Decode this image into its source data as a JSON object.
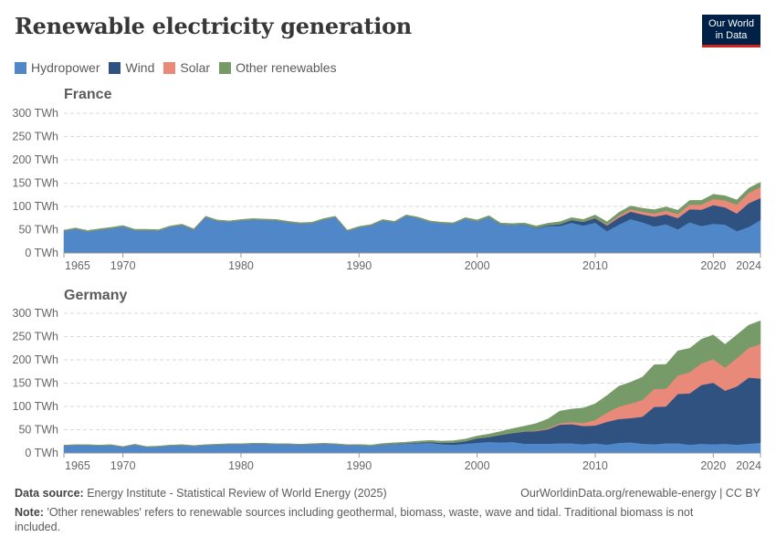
{
  "header": {
    "title": "Renewable electricity generation",
    "logo_line1": "Our World",
    "logo_line2": "in Data"
  },
  "colors": {
    "Hydropower": "#5087c9",
    "Wind": "#2f5280",
    "Solar": "#e9897a",
    "Other renewables": "#769b68"
  },
  "legend": [
    "Hydropower",
    "Wind",
    "Solar",
    "Other renewables"
  ],
  "footer": {
    "source_label": "Data source:",
    "source": "Energy Institute - Statistical Review of World Energy (2025)",
    "url": "OurWorldinData.org/renewable-energy | CC BY",
    "note_label": "Note:",
    "note": "'Other renewables' refers to renewable sources including geothermal, biomass, waste, wave and tidal. Traditional biomass is not included."
  },
  "chart_data": [
    {
      "type": "area",
      "stacked": true,
      "title": "France",
      "x_start": 1965,
      "x_end": 2024,
      "x_ticks": [
        "1965",
        "1970",
        "1980",
        "1990",
        "2000",
        "2010",
        "2020",
        "2024"
      ],
      "y_ticks": [
        "0 TWh",
        "50 TWh",
        "100 TWh",
        "150 TWh",
        "200 TWh",
        "250 TWh",
        "300 TWh"
      ],
      "ylim": [
        0,
        300
      ],
      "grid": true,
      "legend": "top-left",
      "series": [
        {
          "name": "Hydropower",
          "values": [
            47,
            52,
            46,
            50,
            53,
            57,
            49,
            49,
            48,
            56,
            60,
            50,
            77,
            69,
            67,
            70,
            72,
            71,
            70,
            66,
            63,
            64,
            72,
            77,
            47,
            55,
            59,
            70,
            66,
            80,
            75,
            67,
            64,
            63,
            74,
            68,
            77,
            61,
            60,
            61,
            53,
            58,
            58,
            65,
            59,
            65,
            47,
            61,
            73,
            66,
            57,
            62,
            51,
            66,
            58,
            63,
            61,
            47,
            56,
            71
          ]
        },
        {
          "name": "Wind",
          "values": [
            0,
            0,
            0,
            0,
            0,
            0,
            0,
            0,
            0,
            0,
            0,
            0,
            0,
            0,
            0,
            0,
            0,
            0,
            0,
            0,
            0,
            0,
            0,
            0,
            0,
            0,
            0,
            0,
            0,
            0,
            0,
            0,
            0,
            0,
            0,
            0.1,
            0.1,
            0.3,
            0.4,
            0.6,
            1,
            2,
            4,
            6,
            8,
            10,
            12,
            15,
            16,
            17,
            21,
            21,
            24,
            28,
            35,
            40,
            37,
            38,
            51,
            47
          ]
        },
        {
          "name": "Solar",
          "values": [
            0,
            0,
            0,
            0,
            0,
            0,
            0,
            0,
            0,
            0,
            0,
            0,
            0,
            0,
            0,
            0,
            0,
            0,
            0,
            0,
            0,
            0,
            0,
            0,
            0,
            0,
            0,
            0,
            0,
            0,
            0,
            0,
            0,
            0,
            0,
            0,
            0,
            0,
            0,
            0,
            0,
            0,
            0,
            0,
            0,
            0.6,
            2,
            4,
            5,
            6,
            7,
            8,
            9,
            10,
            11,
            13,
            15,
            19,
            22,
            24
          ]
        },
        {
          "name": "Other renewables",
          "values": [
            2,
            2,
            2,
            2,
            2,
            2,
            2,
            2,
            2,
            2,
            2,
            2,
            2,
            2,
            2,
            2,
            2,
            2,
            2,
            2,
            2,
            2,
            2,
            2,
            2,
            2,
            2,
            2,
            2,
            2,
            2,
            2,
            2,
            2,
            2,
            3,
            3,
            3,
            3,
            3,
            4,
            4,
            5,
            5,
            5,
            6,
            6,
            7,
            7,
            7,
            8,
            8,
            8,
            9,
            9,
            10,
            10,
            10,
            10,
            10
          ]
        }
      ]
    },
    {
      "type": "area",
      "stacked": true,
      "title": "Germany",
      "x_start": 1965,
      "x_end": 2024,
      "x_ticks": [
        "1965",
        "1970",
        "1980",
        "1990",
        "2000",
        "2010",
        "2020",
        "2024"
      ],
      "y_ticks": [
        "0 TWh",
        "50 TWh",
        "100 TWh",
        "150 TWh",
        "200 TWh",
        "250 TWh",
        "300 TWh"
      ],
      "ylim": [
        0,
        300
      ],
      "grid": true,
      "series": [
        {
          "name": "Hydropower",
          "values": [
            16,
            17,
            17,
            16,
            17,
            13,
            18,
            13,
            14,
            16,
            17,
            15,
            17,
            18,
            19,
            19,
            20,
            20,
            19,
            19,
            18,
            19,
            20,
            19,
            17,
            17,
            15,
            18,
            19,
            20,
            21,
            22,
            19,
            18,
            20,
            22,
            24,
            23,
            24,
            20,
            20,
            20,
            21,
            21,
            19,
            21,
            18,
            22,
            23,
            20,
            19,
            21,
            21,
            18,
            20,
            19,
            20,
            18,
            20,
            22
          ]
        },
        {
          "name": "Wind",
          "values": [
            0,
            0,
            0,
            0,
            0,
            0,
            0,
            0,
            0,
            0,
            0,
            0,
            0,
            0,
            0,
            0,
            0,
            0,
            0,
            0,
            0,
            0,
            0,
            0,
            0,
            0,
            0.2,
            0.3,
            0.7,
            0.9,
            1.5,
            2,
            3,
            4.5,
            5.5,
            9.5,
            10.5,
            16,
            19,
            26,
            27,
            31,
            40,
            41,
            39,
            38,
            49,
            51,
            52,
            58,
            80,
            79,
            106,
            110,
            126,
            132,
            114,
            125,
            142,
            138
          ]
        },
        {
          "name": "Solar",
          "values": [
            0,
            0,
            0,
            0,
            0,
            0,
            0,
            0,
            0,
            0,
            0,
            0,
            0,
            0,
            0,
            0,
            0,
            0,
            0,
            0,
            0,
            0,
            0,
            0,
            0,
            0,
            0,
            0,
            0,
            0,
            0,
            0,
            0,
            0,
            0,
            0,
            0.1,
            0.2,
            0.3,
            0.6,
            1.3,
            2.2,
            3,
            4.4,
            6.6,
            11.7,
            19.6,
            26.4,
            31,
            36,
            38.7,
            38.1,
            39.4,
            45.8,
            46.4,
            50.6,
            49.3,
            60.8,
            63.6,
            74
          ]
        },
        {
          "name": "Other renewables",
          "values": [
            1,
            1,
            1,
            1,
            1,
            1,
            1,
            1,
            1,
            1,
            1,
            1,
            1,
            1,
            1,
            1,
            1,
            1,
            1,
            1,
            1,
            1,
            1,
            1,
            1,
            1.5,
            2,
            2,
            2.5,
            2.5,
            3,
            3,
            3.5,
            4,
            4.5,
            5,
            6,
            7,
            9,
            11,
            15,
            20,
            26,
            28,
            32,
            35,
            37,
            44,
            46,
            49,
            52,
            52,
            53,
            51,
            52,
            52,
            50,
            50,
            49,
            50
          ]
        }
      ]
    }
  ]
}
